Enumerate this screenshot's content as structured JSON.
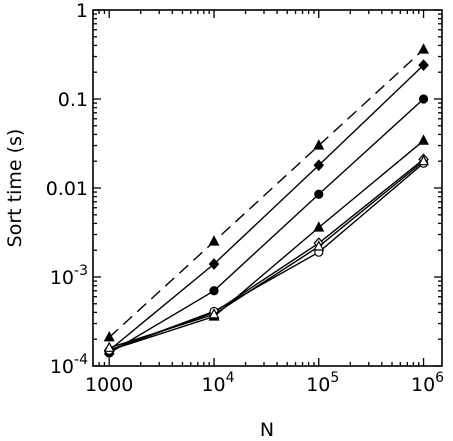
{
  "chart_data": {
    "type": "line",
    "xlabel": "N",
    "ylabel": "Sort time (s)",
    "xscale": "log",
    "yscale": "log",
    "xlim": [
      700,
      1500000
    ],
    "ylim": [
      0.0001,
      1
    ],
    "grid": false,
    "legend": "none",
    "xticks": [
      {
        "value": 1000,
        "base": "1000",
        "exp": ""
      },
      {
        "value": 10000,
        "base": "10",
        "exp": "4"
      },
      {
        "value": 100000,
        "base": "10",
        "exp": "5"
      },
      {
        "value": 1000000,
        "base": "10",
        "exp": "6"
      }
    ],
    "yticks": [
      {
        "value": 1,
        "base": "1",
        "exp": ""
      },
      {
        "value": 0.1,
        "base": "0.1",
        "exp": ""
      },
      {
        "value": 0.01,
        "base": "0.01",
        "exp": ""
      },
      {
        "value": 0.001,
        "base": "10",
        "exp": "-3"
      },
      {
        "value": 0.0001,
        "base": "10",
        "exp": "-4"
      }
    ],
    "x": [
      1000,
      10000,
      100000,
      1000000
    ],
    "series": [
      {
        "values": [
          0.00021,
          0.0025,
          0.03,
          0.36
        ],
        "marker": "filled-triangle",
        "dash": "dashed"
      },
      {
        "values": [
          0.00015,
          0.0014,
          0.018,
          0.24
        ],
        "marker": "filled-diamond",
        "dash": "solid"
      },
      {
        "values": [
          0.00014,
          0.0007,
          0.0085,
          0.1
        ],
        "marker": "filled-circle",
        "dash": "solid"
      },
      {
        "values": [
          0.00015,
          0.00036,
          0.0036,
          0.034
        ],
        "marker": "filled-triangle",
        "dash": "solid"
      },
      {
        "values": [
          0.00015,
          0.0004,
          0.0024,
          0.021
        ],
        "marker": "open-diamond",
        "dash": "solid"
      },
      {
        "values": [
          0.00015,
          0.00041,
          0.0019,
          0.019
        ],
        "marker": "open-circle",
        "dash": "solid"
      },
      {
        "values": [
          0.00016,
          0.00038,
          0.0022,
          0.02
        ],
        "marker": "open-triangle",
        "dash": "solid"
      }
    ]
  }
}
